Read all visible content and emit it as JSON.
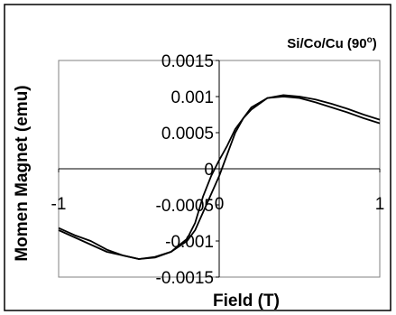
{
  "chart_data": {
    "type": "line",
    "title": "Si/Co/Cu (90",
    "title_superscript": "o",
    "title_suffix": ")",
    "xlabel": "Field (T)",
    "ylabel": "Momen Magnet (emu)",
    "xlim": [
      -1,
      1
    ],
    "ylim": [
      -0.0015,
      0.0015
    ],
    "x_ticks": [
      -1,
      0,
      1
    ],
    "x_tick_labels": [
      "-1",
      "0",
      "1"
    ],
    "y_ticks": [
      0.0015,
      0.001,
      0.0005,
      0,
      -0.0005,
      -0.001,
      -0.0015
    ],
    "y_tick_labels": [
      "0.0015",
      "0.001",
      "0.0005",
      "0",
      "-0.0005",
      "-0.001",
      "-0.0015"
    ],
    "grid": false,
    "legend": "none",
    "line_color": "#000000",
    "series": [
      {
        "x": [
          -1.0,
          -0.9,
          -0.8,
          -0.7,
          -0.6,
          -0.5,
          -0.4,
          -0.3,
          -0.2,
          -0.15,
          -0.1,
          -0.05,
          0.0,
          0.05,
          0.1,
          0.15,
          0.2,
          0.3,
          0.4,
          0.5,
          0.6,
          0.7,
          0.8,
          0.9,
          1.0
        ],
        "values": [
          -0.00085,
          -0.00095,
          -0.00105,
          -0.00115,
          -0.0012,
          -0.00125,
          -0.00122,
          -0.00115,
          -0.001,
          -0.00085,
          -0.0006,
          -0.00035,
          -0.0001,
          0.0002,
          0.0005,
          0.0007,
          0.00082,
          0.00098,
          0.001,
          0.00098,
          0.00092,
          0.00085,
          0.00078,
          0.0007,
          0.00063
        ]
      },
      {
        "x": [
          1.0,
          0.9,
          0.8,
          0.7,
          0.6,
          0.5,
          0.4,
          0.3,
          0.2,
          0.15,
          0.1,
          0.05,
          0.0,
          -0.05,
          -0.1,
          -0.15,
          -0.2,
          -0.3,
          -0.4,
          -0.5,
          -0.6,
          -0.7,
          -0.8,
          -0.9,
          -1.0
        ],
        "values": [
          0.00068,
          0.00075,
          0.00083,
          0.0009,
          0.00096,
          0.001,
          0.00102,
          0.00098,
          0.00085,
          0.0007,
          0.00055,
          0.00032,
          0.00012,
          -0.0001,
          -0.00038,
          -0.00075,
          -0.00097,
          -0.00115,
          -0.00123,
          -0.00125,
          -0.0012,
          -0.00112,
          -0.001,
          -0.00092,
          -0.00082
        ]
      }
    ]
  }
}
